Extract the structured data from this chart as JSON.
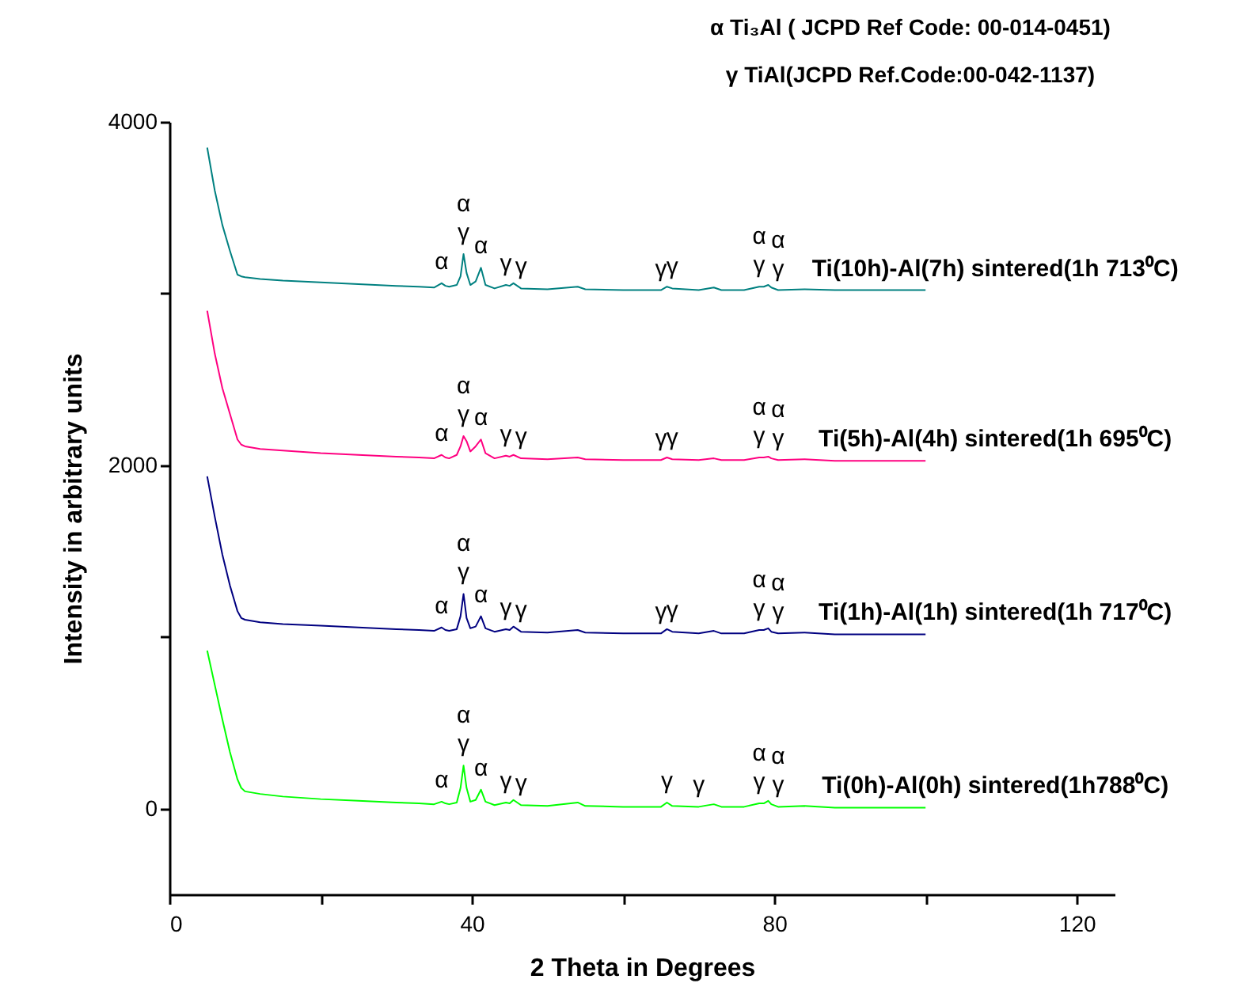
{
  "chart_data": {
    "type": "line",
    "xlabel": "2 Theta in Degrees",
    "ylabel": "Intensity in arbitrary units",
    "x": [
      5,
      6,
      7,
      8,
      9,
      9.5,
      10,
      12,
      15,
      20,
      25,
      30,
      33,
      35,
      36,
      36.5,
      37,
      38,
      38.5,
      38.9,
      39.3,
      39.8,
      40.5,
      41.2,
      41.8,
      43,
      44.5,
      45,
      45.5,
      46.5,
      50,
      54,
      55,
      60,
      65,
      65.8,
      66.5,
      70,
      72,
      73,
      76,
      78,
      78.6,
      79.2,
      79.6,
      80.5,
      84,
      88,
      95,
      100
    ],
    "series": [
      {
        "name": "Ti(10h)-Al(7h) sintered(1h 713⁰C)",
        "color": "#008080",
        "values": [
          3850,
          3600,
          3400,
          3250,
          3110,
          3100,
          3095,
          3085,
          3075,
          3065,
          3055,
          3045,
          3040,
          3035,
          3060,
          3045,
          3040,
          3050,
          3100,
          3230,
          3120,
          3050,
          3070,
          3150,
          3050,
          3030,
          3050,
          3045,
          3060,
          3030,
          3025,
          3040,
          3025,
          3020,
          3020,
          3040,
          3030,
          3020,
          3035,
          3020,
          3020,
          3040,
          3040,
          3050,
          3035,
          3020,
          3025,
          3020,
          3020,
          3020
        ]
      },
      {
        "name": "Ti(5h)-Al(4h) sintered(1h 695⁰C)",
        "color": "#ff0080",
        "values": [
          2900,
          2650,
          2450,
          2300,
          2150,
          2120,
          2110,
          2095,
          2085,
          2070,
          2060,
          2050,
          2045,
          2040,
          2060,
          2045,
          2040,
          2060,
          2110,
          2170,
          2140,
          2080,
          2110,
          2150,
          2070,
          2040,
          2055,
          2050,
          2060,
          2040,
          2035,
          2045,
          2035,
          2030,
          2030,
          2045,
          2035,
          2030,
          2040,
          2030,
          2030,
          2045,
          2045,
          2050,
          2040,
          2030,
          2035,
          2025,
          2025,
          2025
        ]
      },
      {
        "name": "Ti(1h)-Al(1h) sintered(1h 717⁰C)",
        "color": "#000080",
        "values": [
          1935,
          1700,
          1480,
          1300,
          1150,
          1110,
          1100,
          1085,
          1075,
          1065,
          1055,
          1045,
          1040,
          1035,
          1055,
          1040,
          1035,
          1045,
          1120,
          1250,
          1110,
          1050,
          1060,
          1120,
          1050,
          1030,
          1045,
          1040,
          1060,
          1030,
          1025,
          1040,
          1025,
          1020,
          1020,
          1045,
          1030,
          1020,
          1035,
          1020,
          1020,
          1040,
          1040,
          1050,
          1030,
          1020,
          1025,
          1015,
          1015,
          1015
        ]
      },
      {
        "name": "Ti(0h)-Al(0h) sintered(1h788⁰C)",
        "color": "#00ff00",
        "values": [
          920,
          720,
          520,
          330,
          170,
          120,
          100,
          85,
          70,
          55,
          45,
          35,
          30,
          25,
          40,
          30,
          25,
          35,
          120,
          250,
          120,
          40,
          50,
          110,
          40,
          20,
          35,
          30,
          50,
          20,
          15,
          35,
          15,
          10,
          10,
          35,
          15,
          10,
          25,
          10,
          10,
          30,
          30,
          45,
          25,
          10,
          15,
          5,
          5,
          5
        ]
      }
    ],
    "xlim": [
      0,
      125
    ],
    "xticks": [
      0,
      {
        "value": 20,
        "label": null
      },
      40,
      {
        "value": 60,
        "label": null
      },
      80,
      {
        "value": 100,
        "label": null
      },
      120
    ],
    "ylim": [
      -500,
      4000
    ],
    "yticks": [
      0,
      {
        "value": 1000,
        "label": null
      },
      2000,
      {
        "value": 3000,
        "label": null
      },
      4000
    ],
    "grid": false,
    "legend": false,
    "annotations": [
      "α Ti₃Al ( JCPD Ref Code: 00-014-0451)",
      "γ TiAl(JCPD Ref.Code:00-042-1137)",
      {
        "text": "α",
        "x": 36,
        "y": 3060
      },
      {
        "text": "γ",
        "x": 38.9,
        "y": 3230
      },
      {
        "text": "α",
        "x": 38.9,
        "y": 3230
      },
      {
        "text": "α",
        "x": 41.2,
        "y": 3150
      },
      {
        "text": "γ",
        "x": 44.5,
        "y": 3050
      },
      {
        "text": "γ",
        "x": 46.5,
        "y": 3030
      },
      {
        "text": "γ",
        "x": 65,
        "y": 3020
      },
      {
        "text": "γ",
        "x": 66.5,
        "y": 3030
      },
      {
        "text": "γ",
        "x": 78,
        "y": 3040
      },
      {
        "text": "α",
        "x": 78,
        "y": 3040
      },
      {
        "text": "γ",
        "x": 80.5,
        "y": 3020
      },
      {
        "text": "α",
        "x": 80.5,
        "y": 3020
      },
      {
        "text": "α",
        "x": 36,
        "y": 2060
      },
      {
        "text": "γ",
        "x": 38.9,
        "y": 2170
      },
      {
        "text": "α",
        "x": 38.9,
        "y": 2170
      },
      {
        "text": "α",
        "x": 41.2,
        "y": 2150
      },
      {
        "text": "γ",
        "x": 44.5,
        "y": 2055
      },
      {
        "text": "γ",
        "x": 46.5,
        "y": 2040
      },
      {
        "text": "γ",
        "x": 65,
        "y": 2030
      },
      {
        "text": "γ",
        "x": 66.5,
        "y": 2035
      },
      {
        "text": "γ",
        "x": 78,
        "y": 2045
      },
      {
        "text": "α",
        "x": 78,
        "y": 2045
      },
      {
        "text": "γ",
        "x": 80.5,
        "y": 2030
      },
      {
        "text": "α",
        "x": 80.5,
        "y": 2030
      },
      {
        "text": "α",
        "x": 36,
        "y": 1055
      },
      {
        "text": "γ",
        "x": 38.9,
        "y": 1250
      },
      {
        "text": "α",
        "x": 38.9,
        "y": 1250
      },
      {
        "text": "α",
        "x": 41.2,
        "y": 1120
      },
      {
        "text": "γ",
        "x": 44.5,
        "y": 1045
      },
      {
        "text": "γ",
        "x": 46.5,
        "y": 1030
      },
      {
        "text": "γ",
        "x": 65,
        "y": 1020
      },
      {
        "text": "γ",
        "x": 66.5,
        "y": 1030
      },
      {
        "text": "γ",
        "x": 78,
        "y": 1040
      },
      {
        "text": "α",
        "x": 78,
        "y": 1040
      },
      {
        "text": "γ",
        "x": 80.5,
        "y": 1020
      },
      {
        "text": "α",
        "x": 80.5,
        "y": 1020
      },
      {
        "text": "α",
        "x": 36,
        "y": 40
      },
      {
        "text": "γ",
        "x": 38.9,
        "y": 250
      },
      {
        "text": "α",
        "x": 38.9,
        "y": 250
      },
      {
        "text": "α",
        "x": 41.2,
        "y": 110
      },
      {
        "text": "γ",
        "x": 44.5,
        "y": 35
      },
      {
        "text": "γ",
        "x": 46.5,
        "y": 20
      },
      {
        "text": "γ",
        "x": 65.8,
        "y": 35
      },
      {
        "text": "γ",
        "x": 70,
        "y": 10
      },
      {
        "text": "γ",
        "x": 78,
        "y": 30
      },
      {
        "text": "α",
        "x": 78,
        "y": 30
      },
      {
        "text": "γ",
        "x": 80.5,
        "y": 10
      },
      {
        "text": "α",
        "x": 80.5,
        "y": 10
      }
    ]
  }
}
